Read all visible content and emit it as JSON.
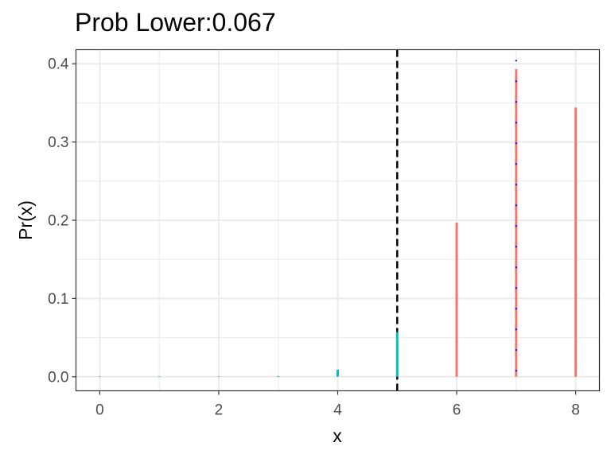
{
  "chart_data": {
    "type": "bar",
    "title": "Prob Lower:0.067",
    "xlabel": "x",
    "ylabel": "Pr(x)",
    "xlim": [
      -0.4,
      8.4
    ],
    "ylim": [
      -0.018,
      0.418
    ],
    "x_ticks": [
      0,
      2,
      4,
      6,
      8
    ],
    "y_ticks": [
      0.0,
      0.1,
      0.2,
      0.3,
      0.4
    ],
    "y_tick_labels": [
      "0.0",
      "0.1",
      "0.2",
      "0.3",
      "0.4"
    ],
    "grid": true,
    "theme": "bw",
    "reference_line": {
      "x": 5,
      "style": "dashed",
      "color": "#000000"
    },
    "series": [
      {
        "color": "#00BFC4",
        "x": [
          0,
          1,
          2,
          3,
          4,
          5
        ],
        "values": [
          0.0,
          0.0,
          0.0,
          0.001,
          0.009,
          0.057
        ]
      },
      {
        "color": "#F8766D",
        "x": [
          6,
          7,
          8
        ],
        "values": [
          0.197,
          0.393,
          0.344
        ]
      }
    ],
    "overlay": {
      "color": "#0000FF",
      "style": "dotted",
      "x": 7,
      "y_range": [
        -0.018,
        0.405
      ]
    }
  }
}
